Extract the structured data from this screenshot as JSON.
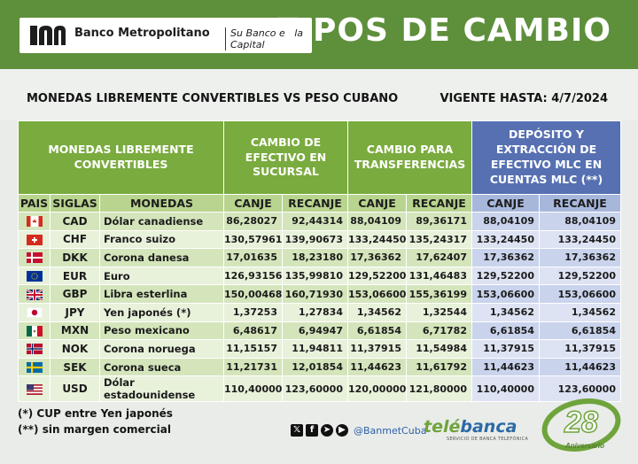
{
  "brand": {
    "name": "Banco Metropolitano",
    "slogan": "Su Banco en la Capital"
  },
  "title": "TIPOS DE CAMBIO",
  "subtitle_left": "MONEDAS LIBREMENTE CONVERTIBLES VS PESO CUBANO",
  "subtitle_right": "VIGENTE HASTA: 4/7/2024",
  "table": {
    "group_headers": {
      "monedas": "MONEDAS LIBREMENTE CONVERTIBLES",
      "efectivo": "CAMBIO DE EFECTIVO EN SUCURSAL",
      "transfer": "CAMBIO PARA TRANSFERENCIAS",
      "mlc": "DEPÓSITO Y EXTRACCIÓN DE EFECTIVO MLC EN CUENTAS MLC (**)"
    },
    "columns": {
      "pais": "PAIS",
      "siglas": "SIGLAS",
      "monedas": "MONEDAS",
      "canje1": "CANJE",
      "recanje1": "RECANJE",
      "canje2": "CANJE",
      "recanje2": "RECANJE",
      "canje3": "CANJE",
      "recanje3": "RECANJE"
    },
    "rows": [
      {
        "flag": "ca",
        "siglas": "CAD",
        "moneda": "Dólar canadiense",
        "ef_canje": "86,28027",
        "ef_recanje": "92,44314",
        "tr_canje": "88,04109",
        "tr_recanje": "89,36171",
        "mlc_canje": "88,04109",
        "mlc_recanje": "88,04109"
      },
      {
        "flag": "ch",
        "siglas": "CHF",
        "moneda": "Franco suizo",
        "ef_canje": "130,57961",
        "ef_recanje": "139,90673",
        "tr_canje": "133,24450",
        "tr_recanje": "135,24317",
        "mlc_canje": "133,24450",
        "mlc_recanje": "133,24450"
      },
      {
        "flag": "dk",
        "siglas": "DKK",
        "moneda": "Corona danesa",
        "ef_canje": "17,01635",
        "ef_recanje": "18,23180",
        "tr_canje": "17,36362",
        "tr_recanje": "17,62407",
        "mlc_canje": "17,36362",
        "mlc_recanje": "17,36362"
      },
      {
        "flag": "eu",
        "siglas": "EUR",
        "moneda": "Euro",
        "ef_canje": "126,93156",
        "ef_recanje": "135,99810",
        "tr_canje": "129,52200",
        "tr_recanje": "131,46483",
        "mlc_canje": "129,52200",
        "mlc_recanje": "129,52200"
      },
      {
        "flag": "gb",
        "siglas": "GBP",
        "moneda": "Libra esterlina",
        "ef_canje": "150,00468",
        "ef_recanje": "160,71930",
        "tr_canje": "153,06600",
        "tr_recanje": "155,36199",
        "mlc_canje": "153,06600",
        "mlc_recanje": "153,06600"
      },
      {
        "flag": "jp",
        "siglas": "JPY",
        "moneda": "Yen japonés (*)",
        "ef_canje": "1,37253",
        "ef_recanje": "1,27834",
        "tr_canje": "1,34562",
        "tr_recanje": "1,32544",
        "mlc_canje": "1,34562",
        "mlc_recanje": "1,34562"
      },
      {
        "flag": "mx",
        "siglas": "MXN",
        "moneda": "Peso mexicano",
        "ef_canje": "6,48617",
        "ef_recanje": "6,94947",
        "tr_canje": "6,61854",
        "tr_recanje": "6,71782",
        "mlc_canje": "6,61854",
        "mlc_recanje": "6,61854"
      },
      {
        "flag": "no",
        "siglas": "NOK",
        "moneda": "Corona noruega",
        "ef_canje": "11,15157",
        "ef_recanje": "11,94811",
        "tr_canje": "11,37915",
        "tr_recanje": "11,54984",
        "mlc_canje": "11,37915",
        "mlc_recanje": "11,37915"
      },
      {
        "flag": "se",
        "siglas": "SEK",
        "moneda": "Corona sueca",
        "ef_canje": "11,21731",
        "ef_recanje": "12,01854",
        "tr_canje": "11,44623",
        "tr_recanje": "11,61792",
        "mlc_canje": "11,44623",
        "mlc_recanje": "11,44623"
      },
      {
        "flag": "us",
        "siglas": "USD",
        "moneda": "Dólar estadounidense",
        "ef_canje": "110,40000",
        "ef_recanje": "123,60000",
        "tr_canje": "120,00000",
        "tr_recanje": "121,80000",
        "mlc_canje": "110,40000",
        "mlc_recanje": "123,60000"
      }
    ]
  },
  "notes": [
    "(*) CUP entre Yen japonés",
    "(**) sin margen comercial"
  ],
  "social": {
    "icons": [
      "x-icon",
      "facebook-icon",
      "telegram-icon",
      "youtube-icon"
    ],
    "handle": "@BanmetCuba"
  },
  "telebanca": {
    "name_green": "telé",
    "name_blue": "banca",
    "tagline": "SERVICIO DE BANCA TELEFÓNICA"
  },
  "anniversary": {
    "number": "28",
    "label": "Aniversario"
  },
  "colors": {
    "header_green": "#5e8f3b",
    "table_green": "#7aab3e",
    "mlc_blue": "#5670b2"
  }
}
